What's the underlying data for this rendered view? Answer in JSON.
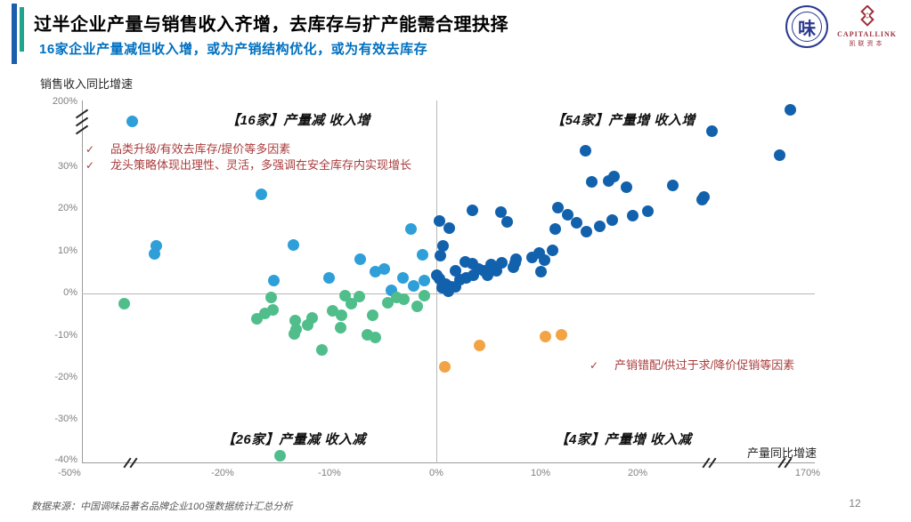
{
  "slide": {
    "title": "过半企业产量与销售收入齐增，去库存与扩产能需合理抉择",
    "subtitle": "16家企业产量减但收入增，或为产销结构优化，或为有效去库存",
    "source": "数据来源：中国调味品著名品牌企业100强数据统计汇总分析",
    "page_number": "12"
  },
  "logos": {
    "seal_char": "味",
    "capitallink_en": "CAPITALLINK",
    "capitallink_cn": "凯联资本"
  },
  "icons": {
    "check": "✓"
  },
  "colors": {
    "accent_bar_blue": "#1b5ead",
    "accent_bar_teal": "#1fa58c",
    "subtitle_blue": "#0070c0",
    "annotation_red": "#a93c3c",
    "axis_gray": "#9c9c9c"
  },
  "chart_data": {
    "type": "scatter",
    "xlabel": "产量同比增速",
    "ylabel": "销售收入同比增速",
    "x_ticks": [
      "-50%",
      "-20%",
      "-10%",
      "0%",
      "10%",
      "20%",
      "170%"
    ],
    "y_ticks": [
      "200%",
      "30%",
      "20%",
      "10%",
      "0%",
      "-10%",
      "-20%",
      "-30%",
      "-40%"
    ],
    "axis_breaks": {
      "y_axis": 1,
      "x_axis": 3
    },
    "units": "percent, YoY growth; axes have broken scales beyond ~35% (y) and ~26% / 160% (x)",
    "quadrants": {
      "top_left": "【16家】产量减 收入增",
      "top_right": "【54家】产量增 收入增",
      "bottom_left": "【26家】产量减 收入减",
      "bottom_right": "【4家】产量增 收入减"
    },
    "annotations": {
      "top_left": [
        "品类升级/有效去库存/提价等多因素",
        "龙头策略体现出理性、灵活，多强调在安全库存内实现增长"
      ],
      "bottom_right": [
        "产销错配/供过于求/降价促销等因素"
      ]
    },
    "series": [
      {
        "name": "产量减 收入增（16家）",
        "color": "#2e9fd8",
        "points": [
          [
            -29,
            129
          ],
          [
            -16.6,
            23.6
          ],
          [
            -26.7,
            11.2
          ],
          [
            -26.8,
            9.3
          ],
          [
            -13.5,
            11.6
          ],
          [
            -2.2,
            15.4
          ],
          [
            -7.1,
            8.2
          ],
          [
            -15.4,
            3.0
          ],
          [
            -10.1,
            3.8
          ],
          [
            -5.6,
            5.1
          ],
          [
            -4.8,
            5.9
          ],
          [
            -1.1,
            9.1
          ],
          [
            -0.9,
            3.0
          ],
          [
            -4.1,
            0.8
          ],
          [
            -3.0,
            3.8
          ],
          [
            -2.0,
            1.9
          ]
        ]
      },
      {
        "name": "产量增 收入增（54家）",
        "color": "#1261ac",
        "points": [
          [
            163,
            170
          ],
          [
            153,
            32.7
          ],
          [
            31,
            92
          ],
          [
            14.5,
            33.9
          ],
          [
            15.1,
            26.4
          ],
          [
            16.8,
            26.6
          ],
          [
            17.3,
            27.8
          ],
          [
            18.5,
            25.1
          ],
          [
            22.9,
            25.7
          ],
          [
            25.9,
            22.8
          ],
          [
            25.7,
            22.2
          ],
          [
            3.7,
            19.8
          ],
          [
            0.5,
            17.1
          ],
          [
            1.5,
            15.6
          ],
          [
            6.4,
            19.2
          ],
          [
            7.0,
            16.9
          ],
          [
            11.9,
            20.3
          ],
          [
            12.8,
            18.6
          ],
          [
            11.6,
            15.4
          ],
          [
            14.6,
            14.6
          ],
          [
            15.9,
            16.0
          ],
          [
            17.1,
            17.5
          ],
          [
            20.5,
            19.6
          ],
          [
            0.9,
            11.4
          ],
          [
            10.1,
            9.7
          ],
          [
            11.4,
            10.3
          ],
          [
            10.6,
            8.0
          ],
          [
            7.9,
            8.2
          ],
          [
            7.8,
            7.2
          ],
          [
            10.3,
            5.1
          ],
          [
            3.0,
            7.4
          ],
          [
            3.7,
            7.0
          ],
          [
            2.1,
            5.5
          ],
          [
            3.1,
            3.8
          ],
          [
            3.8,
            4.4
          ],
          [
            4.8,
            5.5
          ],
          [
            5.1,
            4.4
          ],
          [
            6.0,
            5.3
          ],
          [
            7.6,
            6.3
          ],
          [
            0.5,
            3.4
          ],
          [
            1.1,
            2.3
          ],
          [
            1.6,
            1.7
          ],
          [
            0.8,
            1.3
          ],
          [
            2.1,
            1.5
          ],
          [
            1.4,
            0.6
          ],
          [
            0.3,
            4.4
          ],
          [
            2.5,
            3.2
          ],
          [
            4.3,
            5.9
          ],
          [
            5.5,
            6.8
          ],
          [
            6.5,
            7.2
          ],
          [
            9.4,
            8.6
          ],
          [
            13.7,
            16.7
          ],
          [
            19.1,
            18.4
          ],
          [
            0.6,
            8.9
          ]
        ]
      },
      {
        "name": "产量减 收入减（26家）",
        "color": "#4fbe8b",
        "points": [
          [
            -29.7,
            -2.5
          ],
          [
            -15.6,
            -0.9
          ],
          [
            -15.5,
            -3.8
          ],
          [
            -17.0,
            -5.9
          ],
          [
            -13.3,
            -6.5
          ],
          [
            -13.2,
            -8.6
          ],
          [
            -13.4,
            -9.5
          ],
          [
            -11.7,
            -5.7
          ],
          [
            -10.8,
            -13.3
          ],
          [
            -9.7,
            -4.0
          ],
          [
            -8.9,
            -5.1
          ],
          [
            -8.5,
            -0.6
          ],
          [
            -7.9,
            -2.3
          ],
          [
            -7.2,
            -0.7
          ],
          [
            -5.9,
            -5.1
          ],
          [
            -6.4,
            -9.7
          ],
          [
            -5.6,
            -10.3
          ],
          [
            -2.9,
            -1.3
          ],
          [
            -1.6,
            -3.0
          ],
          [
            -0.9,
            -0.6
          ],
          [
            -14.8,
            -38.4
          ],
          [
            -4.4,
            -2.1
          ],
          [
            -3.6,
            -0.9
          ],
          [
            -12.1,
            -7.4
          ],
          [
            -9.0,
            -8.0
          ],
          [
            -16.2,
            -4.7
          ]
        ]
      },
      {
        "name": "产量增 收入减（4家）",
        "color": "#f2a444",
        "points": [
          [
            1.0,
            -17.3
          ],
          [
            4.4,
            -12.2
          ],
          [
            10.7,
            -10.1
          ],
          [
            12.2,
            -9.7
          ]
        ]
      }
    ]
  }
}
